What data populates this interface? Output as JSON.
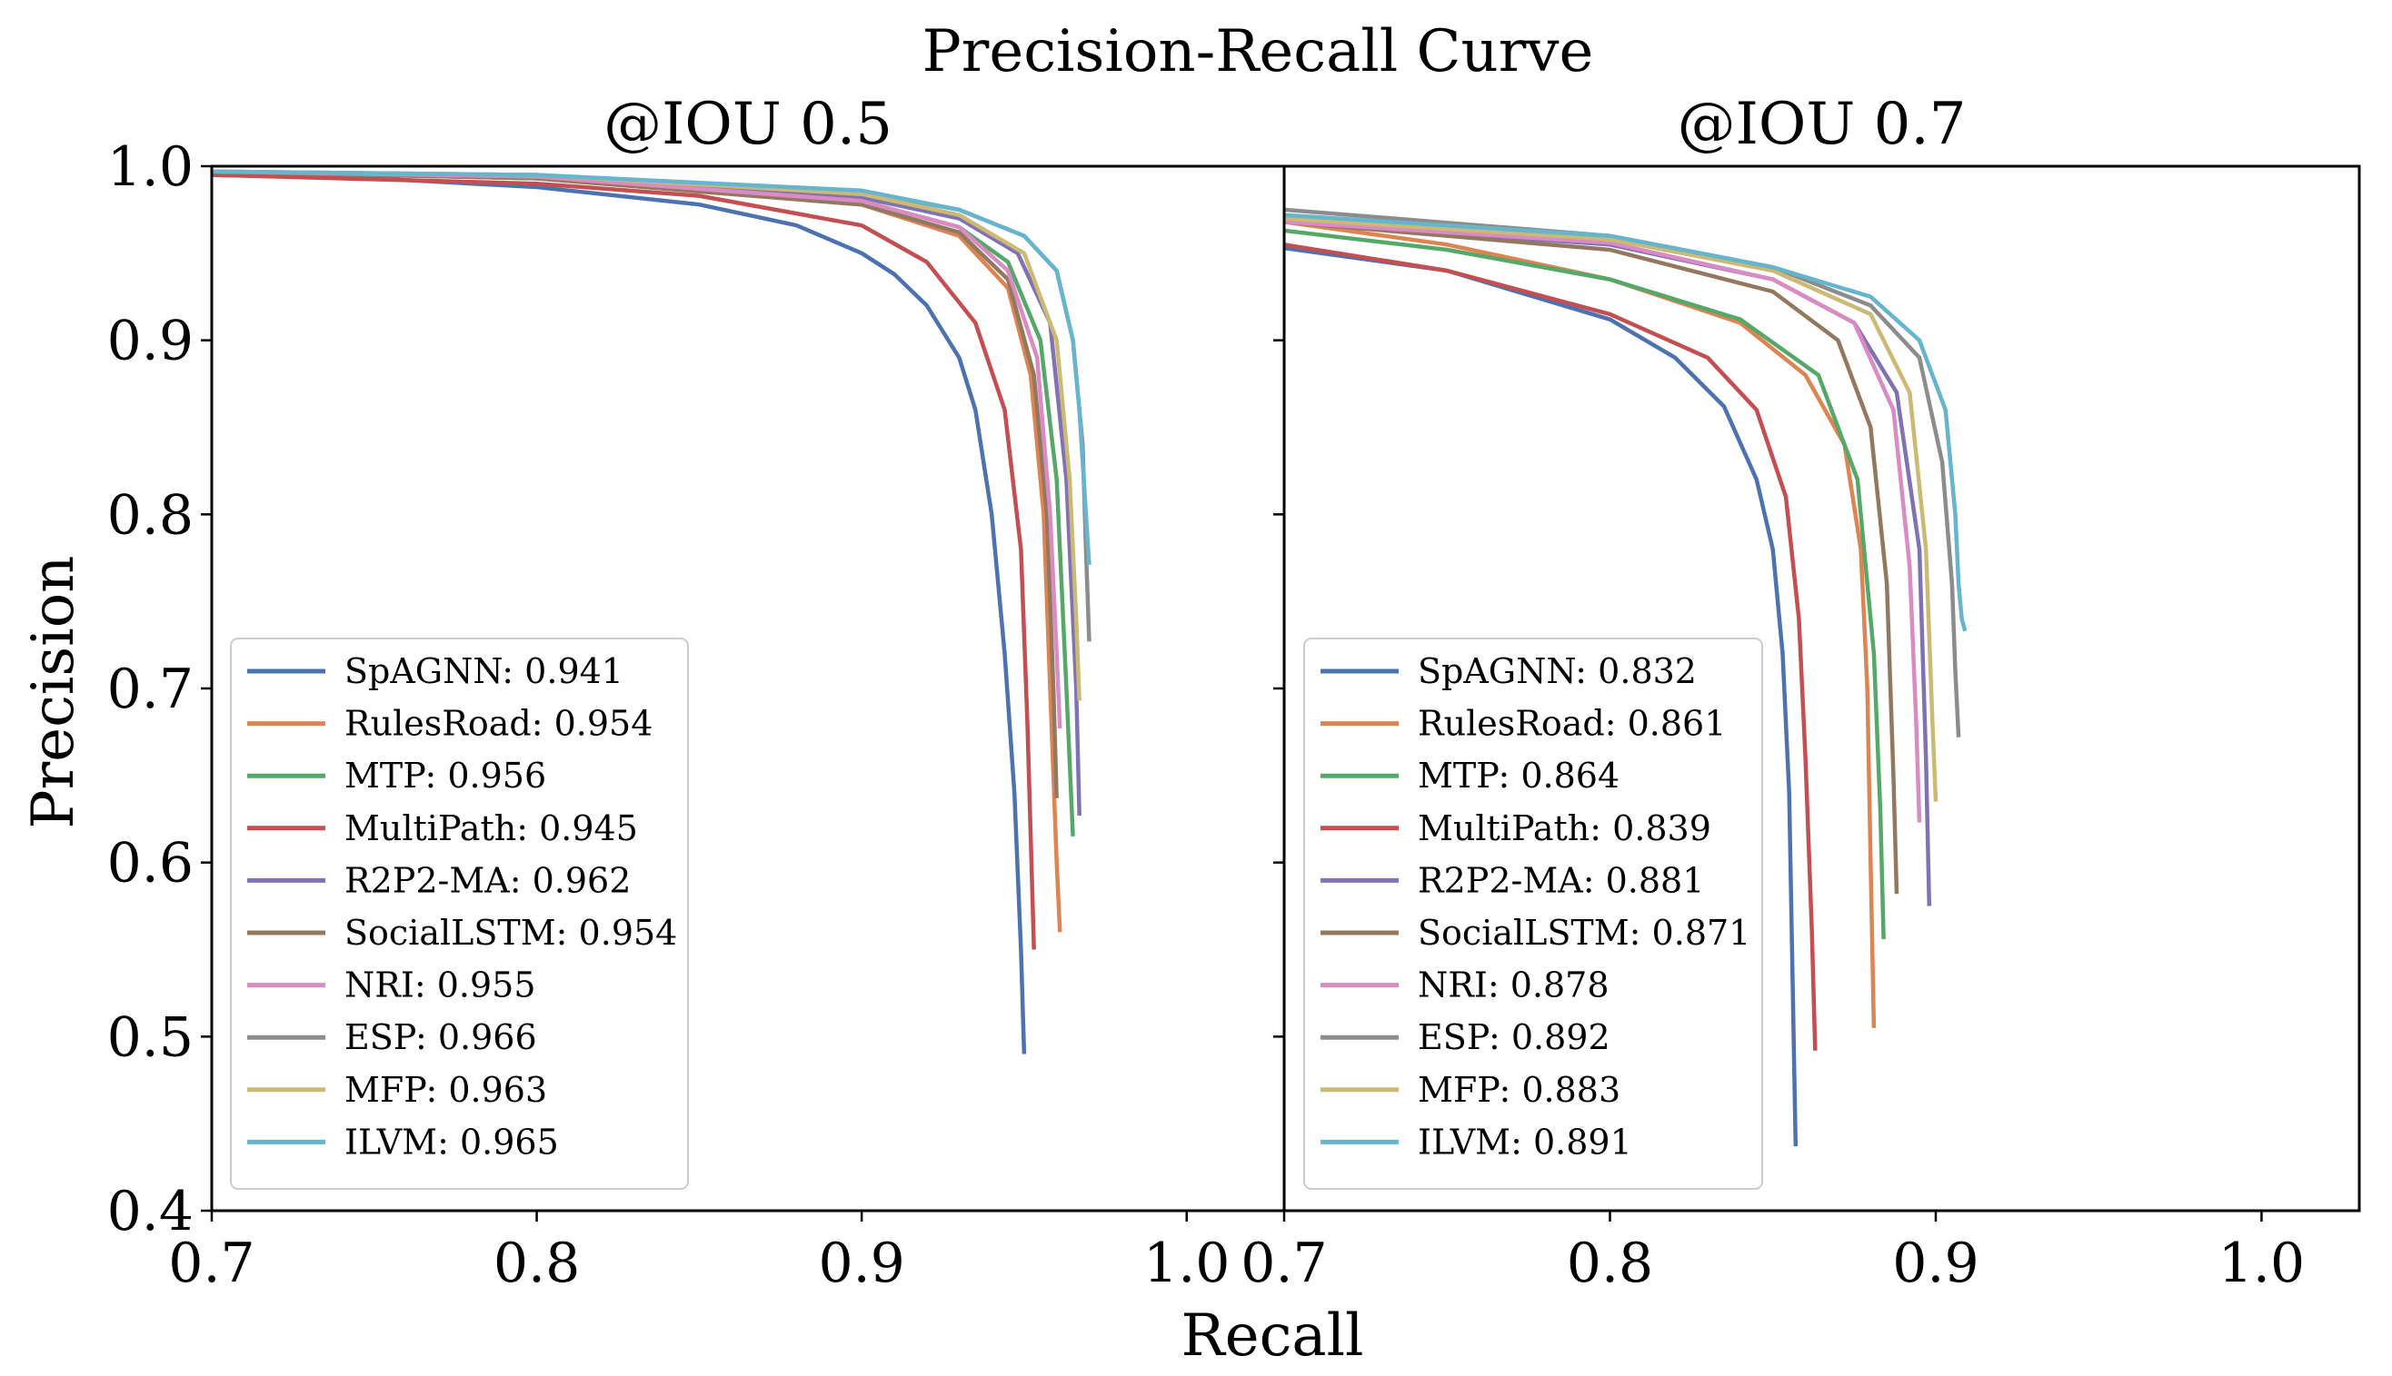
{
  "chart_data": {
    "type": "line",
    "title": "Precision-Recall Curve",
    "xlabel": "Recall",
    "ylabel": "Precision",
    "ylim": [
      0.4,
      1.0
    ],
    "yticks": [
      "0.4",
      "0.5",
      "0.6",
      "0.7",
      "0.8",
      "0.9",
      "1.0"
    ],
    "legend_position": "lower-left",
    "panels": [
      {
        "id": "iou05",
        "subtitle": "@IOU 0.5",
        "xlim": [
          0.7,
          1.03
        ],
        "xticks": [
          "0.7",
          "0.8",
          "0.9",
          "1.0"
        ],
        "series": [
          {
            "name": "SpAGNN",
            "auc": "0.941",
            "color": "#4c72b0",
            "label": "SpAGNN: 0.941",
            "x": [
              0.7,
              0.75,
              0.8,
              0.85,
              0.88,
              0.9,
              0.91,
              0.92,
              0.93,
              0.935,
              0.94,
              0.944,
              0.947,
              0.949,
              0.95
            ],
            "y": [
              0.995,
              0.993,
              0.988,
              0.978,
              0.966,
              0.95,
              0.938,
              0.92,
              0.89,
              0.86,
              0.8,
              0.72,
              0.64,
              0.55,
              0.49
            ]
          },
          {
            "name": "RulesRoad",
            "auc": "0.954",
            "color": "#dd8452",
            "label": "RulesRoad: 0.954",
            "x": [
              0.7,
              0.8,
              0.9,
              0.93,
              0.945,
              0.952,
              0.956,
              0.958,
              0.96,
              0.961
            ],
            "y": [
              0.997,
              0.993,
              0.978,
              0.96,
              0.93,
              0.88,
              0.8,
              0.7,
              0.6,
              0.56
            ]
          },
          {
            "name": "MTP",
            "auc": "0.956",
            "color": "#55a868",
            "label": "MTP: 0.956",
            "x": [
              0.7,
              0.8,
              0.9,
              0.93,
              0.945,
              0.955,
              0.96,
              0.963,
              0.965
            ],
            "y": [
              0.997,
              0.993,
              0.98,
              0.965,
              0.945,
              0.9,
              0.82,
              0.7,
              0.615
            ]
          },
          {
            "name": "MultiPath",
            "auc": "0.945",
            "color": "#c44e52",
            "label": "MultiPath: 0.945",
            "x": [
              0.7,
              0.8,
              0.85,
              0.9,
              0.92,
              0.935,
              0.944,
              0.949,
              0.951,
              0.953
            ],
            "y": [
              0.995,
              0.99,
              0.983,
              0.966,
              0.945,
              0.91,
              0.86,
              0.78,
              0.68,
              0.55
            ]
          },
          {
            "name": "R2P2-MA",
            "auc": "0.962",
            "color": "#8172b3",
            "label": "R2P2-MA: 0.962",
            "x": [
              0.7,
              0.8,
              0.9,
              0.93,
              0.948,
              0.958,
              0.963,
              0.966,
              0.967
            ],
            "y": [
              0.997,
              0.994,
              0.982,
              0.97,
              0.95,
              0.91,
              0.82,
              0.7,
              0.627
            ]
          },
          {
            "name": "SocialLSTM",
            "auc": "0.954",
            "color": "#937860",
            "label": "SocialLSTM: 0.954",
            "x": [
              0.7,
              0.8,
              0.9,
              0.93,
              0.945,
              0.953,
              0.957,
              0.959,
              0.96
            ],
            "y": [
              0.997,
              0.993,
              0.978,
              0.962,
              0.935,
              0.88,
              0.8,
              0.7,
              0.637
            ]
          },
          {
            "name": "NRI",
            "auc": "0.955",
            "color": "#da8bc3",
            "label": "NRI: 0.955",
            "x": [
              0.7,
              0.8,
              0.9,
              0.93,
              0.945,
              0.954,
              0.958,
              0.96,
              0.961
            ],
            "y": [
              0.997,
              0.994,
              0.98,
              0.965,
              0.94,
              0.89,
              0.8,
              0.72,
              0.677
            ]
          },
          {
            "name": "ESP",
            "auc": "0.966",
            "color": "#8c8c8c",
            "label": "ESP: 0.966",
            "x": [
              0.7,
              0.8,
              0.9,
              0.93,
              0.95,
              0.96,
              0.965,
              0.968,
              0.969,
              0.97
            ],
            "y": [
              0.997,
              0.995,
              0.985,
              0.975,
              0.96,
              0.94,
              0.9,
              0.84,
              0.78,
              0.727
            ]
          },
          {
            "name": "MFP",
            "auc": "0.963",
            "color": "#ccb974",
            "label": "MFP: 0.963",
            "x": [
              0.7,
              0.8,
              0.9,
              0.93,
              0.95,
              0.96,
              0.964,
              0.966,
              0.967
            ],
            "y": [
              0.997,
              0.995,
              0.984,
              0.972,
              0.95,
              0.9,
              0.82,
              0.74,
              0.693
            ]
          },
          {
            "name": "ILVM",
            "auc": "0.965",
            "color": "#64b5cd",
            "label": "ILVM: 0.965",
            "x": [
              0.7,
              0.8,
              0.9,
              0.93,
              0.95,
              0.96,
              0.965,
              0.967,
              0.969,
              0.97
            ],
            "y": [
              0.997,
              0.995,
              0.986,
              0.975,
              0.96,
              0.94,
              0.9,
              0.86,
              0.8,
              0.771
            ]
          }
        ]
      },
      {
        "id": "iou07",
        "subtitle": "@IOU 0.7",
        "xlim": [
          0.7,
          1.03
        ],
        "xticks": [
          "0.7",
          "0.8",
          "0.9",
          "1.0"
        ],
        "series": [
          {
            "name": "SpAGNN",
            "auc": "0.832",
            "color": "#4c72b0",
            "label": "SpAGNN: 0.832",
            "x": [
              0.7,
              0.75,
              0.8,
              0.82,
              0.835,
              0.845,
              0.85,
              0.853,
              0.855,
              0.856,
              0.857
            ],
            "y": [
              0.953,
              0.94,
              0.912,
              0.89,
              0.862,
              0.82,
              0.78,
              0.72,
              0.64,
              0.54,
              0.437
            ]
          },
          {
            "name": "RulesRoad",
            "auc": "0.861",
            "color": "#dd8452",
            "label": "RulesRoad: 0.861",
            "x": [
              0.7,
              0.75,
              0.8,
              0.84,
              0.86,
              0.872,
              0.877,
              0.879,
              0.88,
              0.881
            ],
            "y": [
              0.968,
              0.955,
              0.935,
              0.91,
              0.88,
              0.84,
              0.78,
              0.7,
              0.6,
              0.505
            ]
          },
          {
            "name": "MTP",
            "auc": "0.864",
            "color": "#55a868",
            "label": "MTP: 0.864",
            "x": [
              0.7,
              0.75,
              0.8,
              0.84,
              0.864,
              0.876,
              0.881,
              0.883,
              0.884
            ],
            "y": [
              0.963,
              0.952,
              0.935,
              0.912,
              0.88,
              0.82,
              0.72,
              0.63,
              0.556
            ]
          },
          {
            "name": "MultiPath",
            "auc": "0.839",
            "color": "#c44e52",
            "label": "MultiPath: 0.839",
            "x": [
              0.7,
              0.75,
              0.8,
              0.83,
              0.845,
              0.854,
              0.858,
              0.86,
              0.862,
              0.863
            ],
            "y": [
              0.955,
              0.94,
              0.915,
              0.89,
              0.86,
              0.81,
              0.74,
              0.66,
              0.56,
              0.492
            ]
          },
          {
            "name": "R2P2-MA",
            "auc": "0.881",
            "color": "#8172b3",
            "label": "R2P2-MA: 0.881",
            "x": [
              0.7,
              0.8,
              0.85,
              0.875,
              0.888,
              0.895,
              0.897,
              0.898
            ],
            "y": [
              0.968,
              0.955,
              0.935,
              0.91,
              0.87,
              0.78,
              0.66,
              0.575
            ]
          },
          {
            "name": "SocialLSTM",
            "auc": "0.871",
            "color": "#937860",
            "label": "SocialLSTM: 0.871",
            "x": [
              0.7,
              0.8,
              0.85,
              0.87,
              0.88,
              0.885,
              0.887,
              0.888
            ],
            "y": [
              0.968,
              0.952,
              0.928,
              0.9,
              0.85,
              0.76,
              0.65,
              0.582
            ]
          },
          {
            "name": "NRI",
            "auc": "0.878",
            "color": "#da8bc3",
            "label": "NRI: 0.878",
            "x": [
              0.7,
              0.8,
              0.85,
              0.875,
              0.887,
              0.892,
              0.894,
              0.895
            ],
            "y": [
              0.968,
              0.956,
              0.935,
              0.91,
              0.86,
              0.77,
              0.68,
              0.623
            ]
          },
          {
            "name": "ESP",
            "auc": "0.892",
            "color": "#8c8c8c",
            "label": "ESP: 0.892",
            "x": [
              0.7,
              0.8,
              0.85,
              0.88,
              0.895,
              0.902,
              0.905,
              0.906,
              0.907
            ],
            "y": [
              0.975,
              0.96,
              0.942,
              0.92,
              0.89,
              0.83,
              0.76,
              0.71,
              0.672
            ]
          },
          {
            "name": "MFP",
            "auc": "0.883",
            "color": "#ccb974",
            "label": "MFP: 0.883",
            "x": [
              0.7,
              0.8,
              0.85,
              0.88,
              0.892,
              0.897,
              0.899,
              0.9
            ],
            "y": [
              0.97,
              0.958,
              0.94,
              0.915,
              0.87,
              0.78,
              0.68,
              0.635
            ]
          },
          {
            "name": "ILVM",
            "auc": "0.891",
            "color": "#64b5cd",
            "label": "ILVM: 0.891",
            "x": [
              0.7,
              0.8,
              0.85,
              0.88,
              0.895,
              0.903,
              0.906,
              0.907,
              0.908,
              0.909
            ],
            "y": [
              0.972,
              0.96,
              0.942,
              0.925,
              0.9,
              0.86,
              0.8,
              0.76,
              0.74,
              0.733
            ]
          }
        ]
      }
    ]
  }
}
